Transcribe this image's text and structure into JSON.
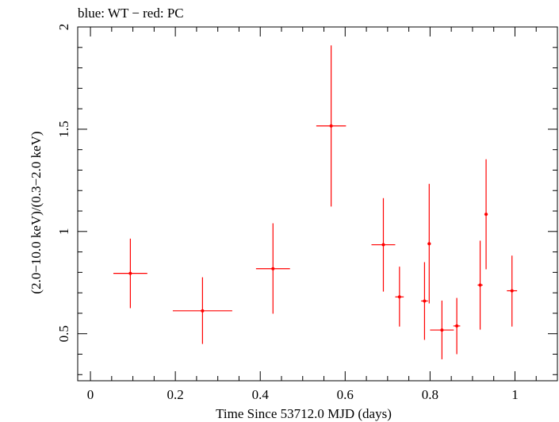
{
  "chart_data": {
    "type": "scatter",
    "title": "blue: WT − red: PC",
    "xlabel": "Time Since 53712.0 MJD (days)",
    "ylabel": "(2.0−10.0 keV)/(0.3−2.0 keV)",
    "xlim": [
      -0.03,
      1.1
    ],
    "ylim": [
      0.27,
      2.0
    ],
    "xticks": [
      0,
      0.2,
      0.4,
      0.6,
      0.8,
      1
    ],
    "xtick_labels": [
      "0",
      "0.2",
      "0.4",
      "0.6",
      "0.8",
      "1"
    ],
    "yticks": [
      0.5,
      1,
      1.5,
      2
    ],
    "ytick_labels": [
      "0.5",
      "1",
      "1.5",
      "2"
    ],
    "grid": false,
    "legend": "none",
    "series": [
      {
        "color": "#ff0000",
        "points": [
          {
            "x": 0.094,
            "xerr": 0.04,
            "y": 0.795,
            "ylo": 0.625,
            "yhi": 0.965
          },
          {
            "x": 0.264,
            "xerr": 0.07,
            "y": 0.612,
            "ylo": 0.45,
            "yhi": 0.776
          },
          {
            "x": 0.43,
            "xerr": 0.04,
            "y": 0.818,
            "ylo": 0.598,
            "yhi": 1.04
          },
          {
            "x": 0.567,
            "xerr": 0.035,
            "y": 1.516,
            "ylo": 1.122,
            "yhi": 1.91
          },
          {
            "x": 0.69,
            "xerr": 0.028,
            "y": 0.935,
            "ylo": 0.706,
            "yhi": 1.163
          },
          {
            "x": 0.728,
            "xerr": 0.01,
            "y": 0.68,
            "ylo": 0.535,
            "yhi": 0.828
          },
          {
            "x": 0.787,
            "xerr": 0.008,
            "y": 0.66,
            "ylo": 0.47,
            "yhi": 0.85
          },
          {
            "x": 0.798,
            "xerr": 0.004,
            "y": 0.94,
            "ylo": 0.648,
            "yhi": 1.233
          },
          {
            "x": 0.828,
            "xerr": 0.028,
            "y": 0.518,
            "ylo": 0.375,
            "yhi": 0.662
          },
          {
            "x": 0.863,
            "xerr": 0.008,
            "y": 0.538,
            "ylo": 0.4,
            "yhi": 0.675
          },
          {
            "x": 0.918,
            "xerr": 0.006,
            "y": 0.738,
            "ylo": 0.52,
            "yhi": 0.955
          },
          {
            "x": 0.932,
            "xerr": 0.004,
            "y": 1.084,
            "ylo": 0.815,
            "yhi": 1.353
          },
          {
            "x": 0.993,
            "xerr": 0.012,
            "y": 0.71,
            "ylo": 0.535,
            "yhi": 0.882
          }
        ]
      }
    ]
  }
}
